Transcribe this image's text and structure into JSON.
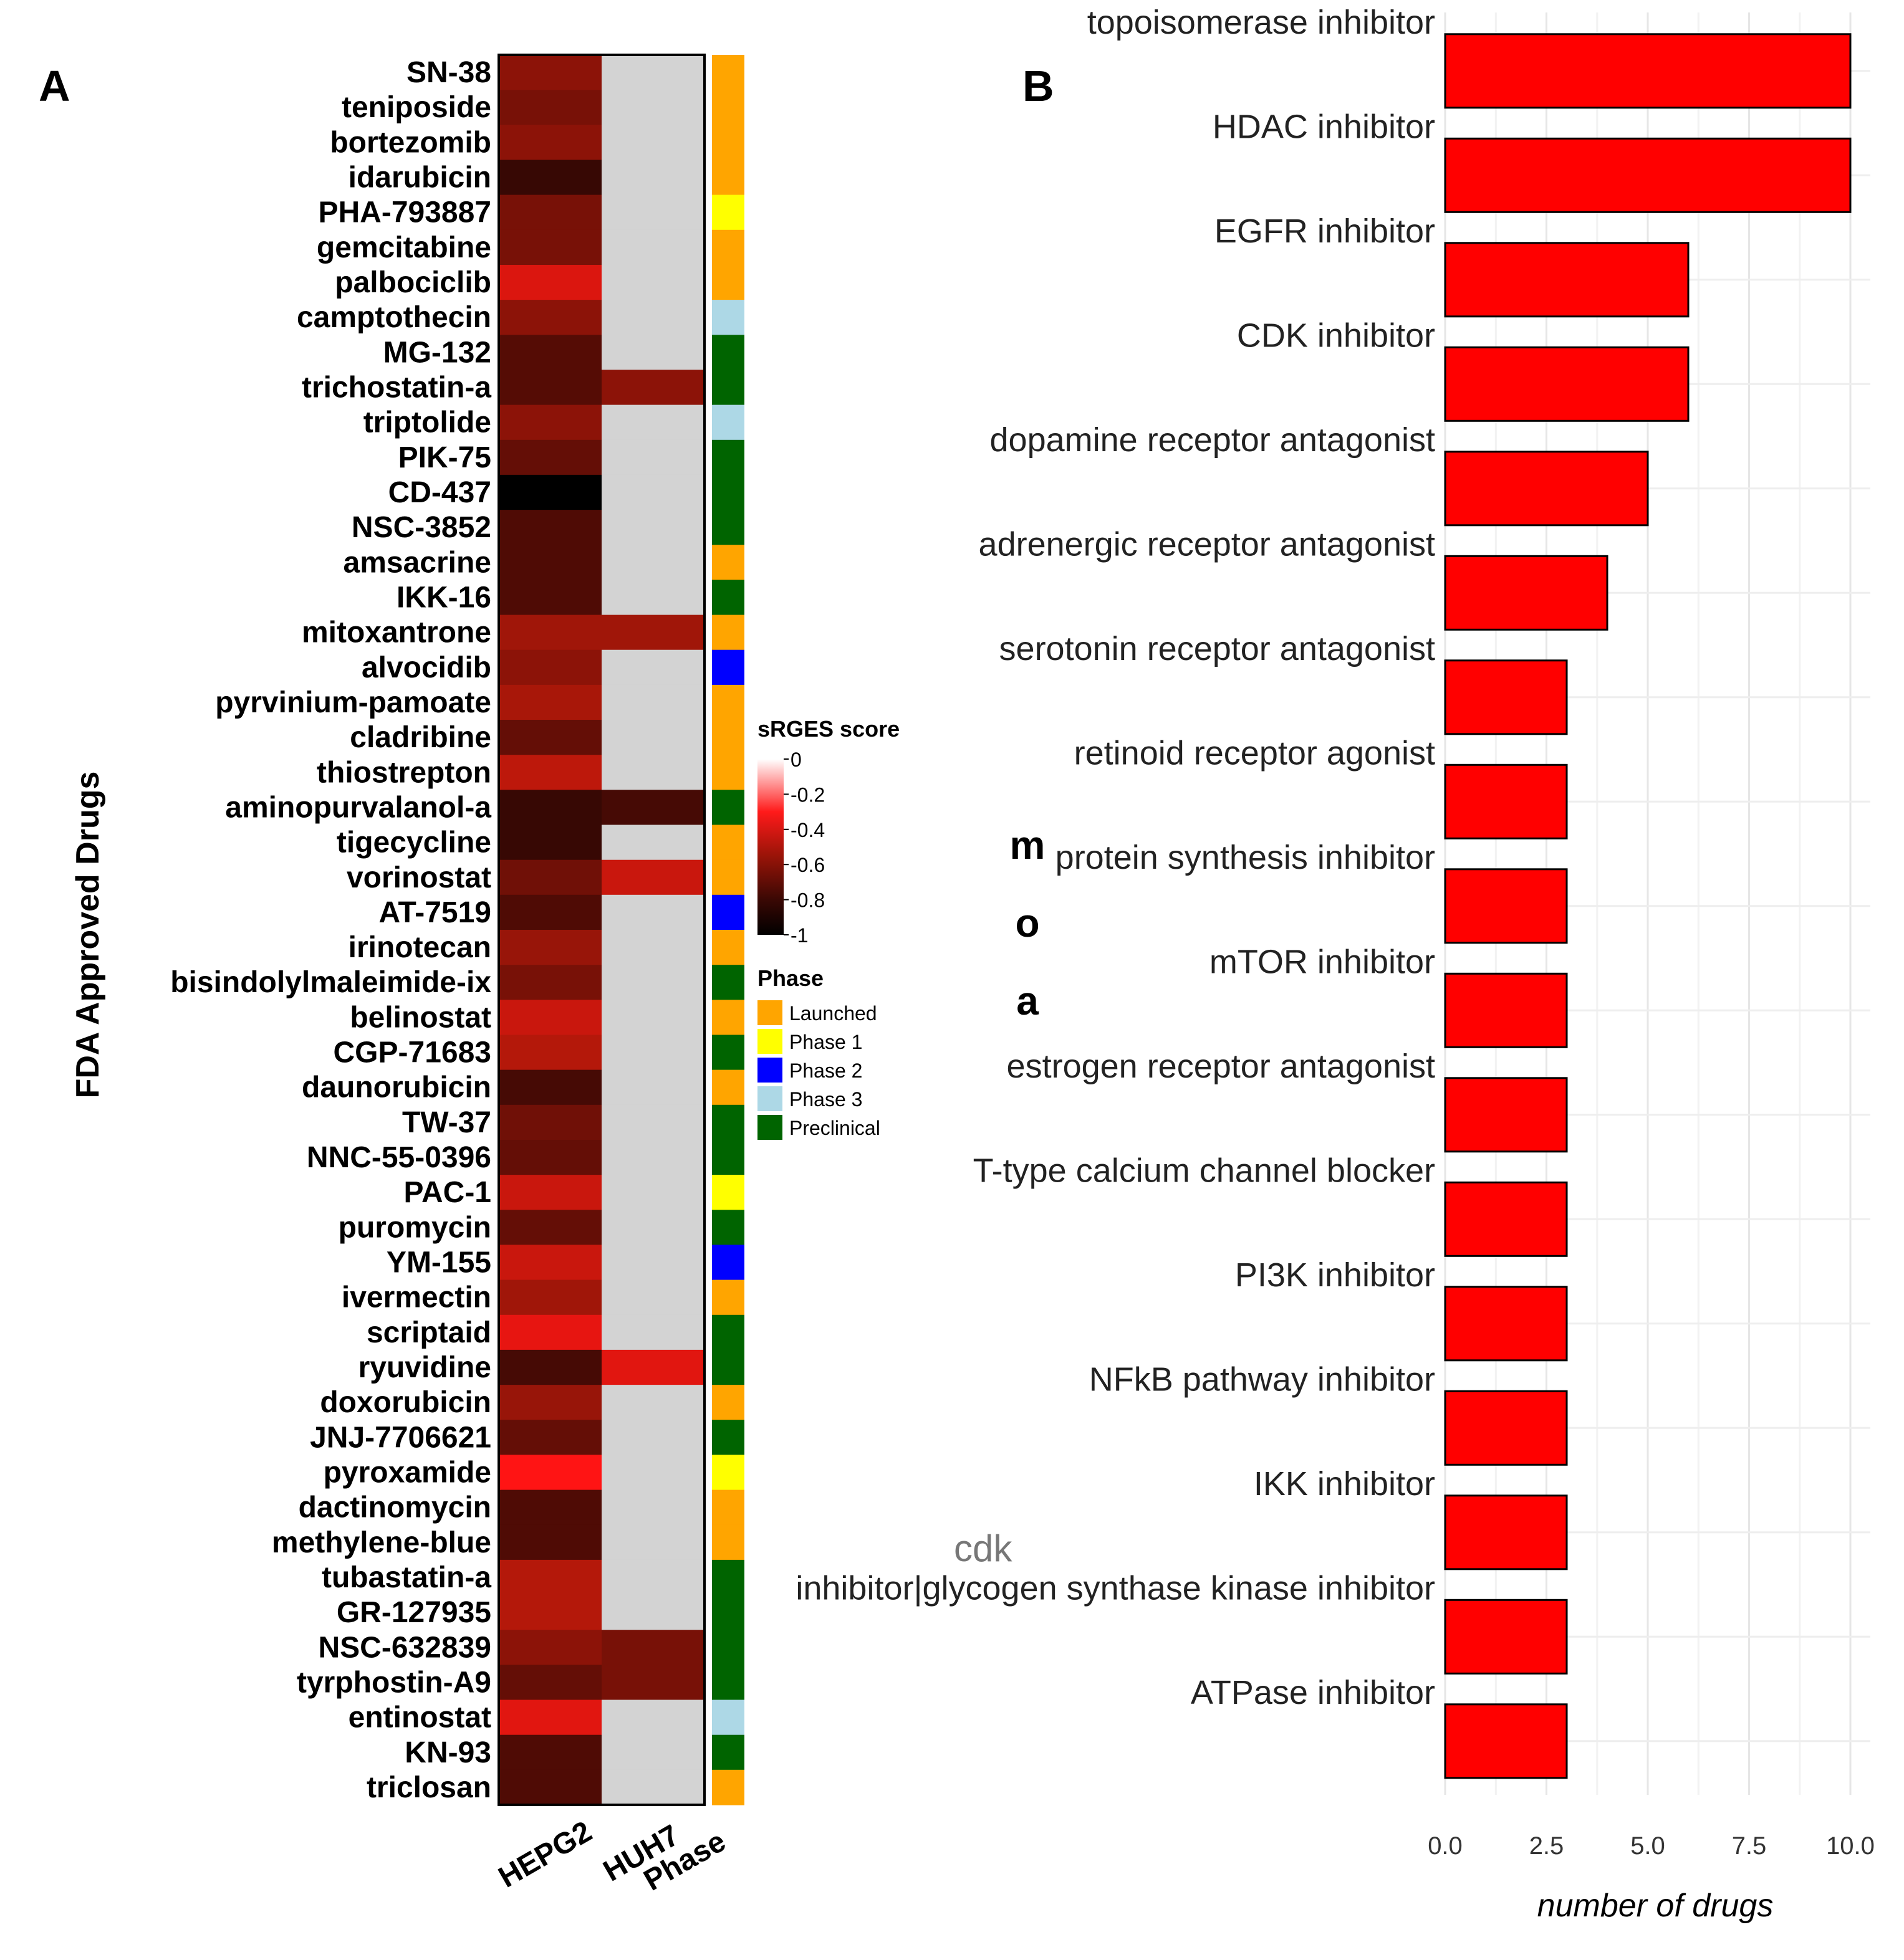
{
  "chart_data": [
    {
      "type": "heatmap",
      "panel_label": "A",
      "ylabel": "FDA Approved Drugs",
      "columns": [
        "HEPG2",
        "HUH7",
        "Phase"
      ],
      "legend_title": "sRGES score",
      "legend_ticks": [
        "0",
        "-0.2",
        "-0.4",
        "-0.6",
        "-0.8",
        "-1"
      ],
      "phase_legend_title": "Phase",
      "phase_colors": {
        "Launched": "#FFA500",
        "Phase 1": "#FFFF00",
        "Phase 2": "#0000FF",
        "Phase 3": "#ADD8E6",
        "Preclinical": "#006400"
      },
      "phases": [
        "Launched",
        "Phase 1",
        "Phase 2",
        "Phase 3",
        "Preclinical"
      ],
      "na_color": "#D3D3D3",
      "drugs": [
        {
          "name": "SN-38",
          "hepg2": -0.55,
          "huh7": null,
          "phase": "Launched"
        },
        {
          "name": "teniposide",
          "hepg2": -0.6,
          "huh7": null,
          "phase": "Launched"
        },
        {
          "name": "bortezomib",
          "hepg2": -0.55,
          "huh7": null,
          "phase": "Launched"
        },
        {
          "name": "idarubicin",
          "hepg2": -0.8,
          "huh7": null,
          "phase": "Launched"
        },
        {
          "name": "PHA-793887",
          "hepg2": -0.6,
          "huh7": null,
          "phase": "Phase 1"
        },
        {
          "name": "gemcitabine",
          "hepg2": -0.6,
          "huh7": null,
          "phase": "Launched"
        },
        {
          "name": "palbociclib",
          "hepg2": -0.32,
          "huh7": null,
          "phase": "Launched"
        },
        {
          "name": "camptothecin",
          "hepg2": -0.55,
          "huh7": null,
          "phase": "Phase 3"
        },
        {
          "name": "MG-132",
          "hepg2": -0.7,
          "huh7": null,
          "phase": "Preclinical"
        },
        {
          "name": "trichostatin-a",
          "hepg2": -0.7,
          "huh7": -0.55,
          "phase": "Preclinical"
        },
        {
          "name": "triptolide",
          "hepg2": -0.55,
          "huh7": null,
          "phase": "Phase 3"
        },
        {
          "name": "PIK-75",
          "hepg2": -0.65,
          "huh7": null,
          "phase": "Preclinical"
        },
        {
          "name": "CD-437",
          "hepg2": -1.0,
          "huh7": null,
          "phase": "Preclinical"
        },
        {
          "name": "NSC-3852",
          "hepg2": -0.72,
          "huh7": null,
          "phase": "Preclinical"
        },
        {
          "name": "amsacrine",
          "hepg2": -0.72,
          "huh7": null,
          "phase": "Launched"
        },
        {
          "name": "IKK-16",
          "hepg2": -0.72,
          "huh7": null,
          "phase": "Preclinical"
        },
        {
          "name": "mitoxantrone",
          "hepg2": -0.5,
          "huh7": -0.5,
          "phase": "Launched"
        },
        {
          "name": "alvocidib",
          "hepg2": -0.55,
          "huh7": null,
          "phase": "Phase 2"
        },
        {
          "name": "pyrvinium-pamoate",
          "hepg2": -0.48,
          "huh7": null,
          "phase": "Launched"
        },
        {
          "name": "cladribine",
          "hepg2": -0.65,
          "huh7": null,
          "phase": "Launched"
        },
        {
          "name": "thiostrepton",
          "hepg2": -0.42,
          "huh7": null,
          "phase": "Launched"
        },
        {
          "name": "aminopurvalanol-a",
          "hepg2": -0.8,
          "huh7": -0.75,
          "phase": "Preclinical"
        },
        {
          "name": "tigecycline",
          "hepg2": -0.8,
          "huh7": null,
          "phase": "Launched"
        },
        {
          "name": "vorinostat",
          "hepg2": -0.62,
          "huh7": -0.38,
          "phase": "Launched"
        },
        {
          "name": "AT-7519",
          "hepg2": -0.72,
          "huh7": null,
          "phase": "Phase 2"
        },
        {
          "name": "irinotecan",
          "hepg2": -0.52,
          "huh7": null,
          "phase": "Launched"
        },
        {
          "name": "bisindolylmaleimide-ix",
          "hepg2": -0.6,
          "huh7": null,
          "phase": "Preclinical"
        },
        {
          "name": "belinostat",
          "hepg2": -0.38,
          "huh7": null,
          "phase": "Launched"
        },
        {
          "name": "CGP-71683",
          "hepg2": -0.45,
          "huh7": null,
          "phase": "Preclinical"
        },
        {
          "name": "daunorubicin",
          "hepg2": -0.75,
          "huh7": null,
          "phase": "Launched"
        },
        {
          "name": "TW-37",
          "hepg2": -0.62,
          "huh7": null,
          "phase": "Preclinical"
        },
        {
          "name": "NNC-55-0396",
          "hepg2": -0.65,
          "huh7": null,
          "phase": "Preclinical"
        },
        {
          "name": "PAC-1",
          "hepg2": -0.38,
          "huh7": null,
          "phase": "Phase 1"
        },
        {
          "name": "puromycin",
          "hepg2": -0.65,
          "huh7": null,
          "phase": "Preclinical"
        },
        {
          "name": "YM-155",
          "hepg2": -0.38,
          "huh7": null,
          "phase": "Phase 2"
        },
        {
          "name": "ivermectin",
          "hepg2": -0.5,
          "huh7": null,
          "phase": "Launched"
        },
        {
          "name": "scriptaid",
          "hepg2": -0.28,
          "huh7": null,
          "phase": "Preclinical"
        },
        {
          "name": "ryuvidine",
          "hepg2": -0.75,
          "huh7": -0.3,
          "phase": "Preclinical"
        },
        {
          "name": "doxorubicin",
          "hepg2": -0.52,
          "huh7": null,
          "phase": "Launched"
        },
        {
          "name": "JNJ-7706621",
          "hepg2": -0.65,
          "huh7": null,
          "phase": "Preclinical"
        },
        {
          "name": "pyroxamide",
          "hepg2": -0.2,
          "huh7": null,
          "phase": "Phase 1"
        },
        {
          "name": "dactinomycin",
          "hepg2": -0.72,
          "huh7": null,
          "phase": "Launched"
        },
        {
          "name": "methylene-blue",
          "hepg2": -0.72,
          "huh7": null,
          "phase": "Launched"
        },
        {
          "name": "tubastatin-a",
          "hepg2": -0.45,
          "huh7": null,
          "phase": "Preclinical"
        },
        {
          "name": "GR-127935",
          "hepg2": -0.45,
          "huh7": null,
          "phase": "Preclinical"
        },
        {
          "name": "NSC-632839",
          "hepg2": -0.55,
          "huh7": -0.6,
          "phase": "Preclinical"
        },
        {
          "name": "tyrphostin-A9",
          "hepg2": -0.65,
          "huh7": -0.6,
          "phase": "Preclinical"
        },
        {
          "name": "entinostat",
          "hepg2": -0.3,
          "huh7": null,
          "phase": "Phase 3"
        },
        {
          "name": "KN-93",
          "hepg2": -0.72,
          "huh7": null,
          "phase": "Preclinical"
        },
        {
          "name": "triclosan",
          "hepg2": -0.72,
          "huh7": null,
          "phase": "Launched"
        }
      ]
    },
    {
      "type": "bar",
      "orientation": "horizontal",
      "panel_label": "B",
      "ylabel": "moa",
      "ylabel_letters": [
        "m",
        "o",
        "a"
      ],
      "xlabel": "number of drugs",
      "xlim": [
        0,
        10
      ],
      "xticks": [
        "0.0",
        "2.5",
        "5.0",
        "7.5",
        "10.0"
      ],
      "bar_color": "#FF0000",
      "categories": [
        "topoisomerase inhibitor",
        "HDAC inhibitor",
        "EGFR inhibitor",
        "CDK inhibitor",
        "dopamine receptor antagonist",
        "adrenergic receptor antagonist",
        "serotonin receptor antagonist",
        "retinoid receptor agonist",
        "protein synthesis inhibitor",
        "mTOR inhibitor",
        "estrogen receptor antagonist",
        "T-type calcium channel blocker",
        "PI3K inhibitor",
        "NFkB pathway inhibitor",
        "IKK inhibitor",
        "inhibitor|glycogen synthase kinase inhibitor",
        "ATPase inhibitor"
      ],
      "values": [
        10,
        10,
        6,
        6,
        5,
        4,
        3,
        3,
        3,
        3,
        3,
        3,
        3,
        3,
        3,
        3,
        3
      ],
      "wrapped_prefix": "cdk"
    }
  ]
}
